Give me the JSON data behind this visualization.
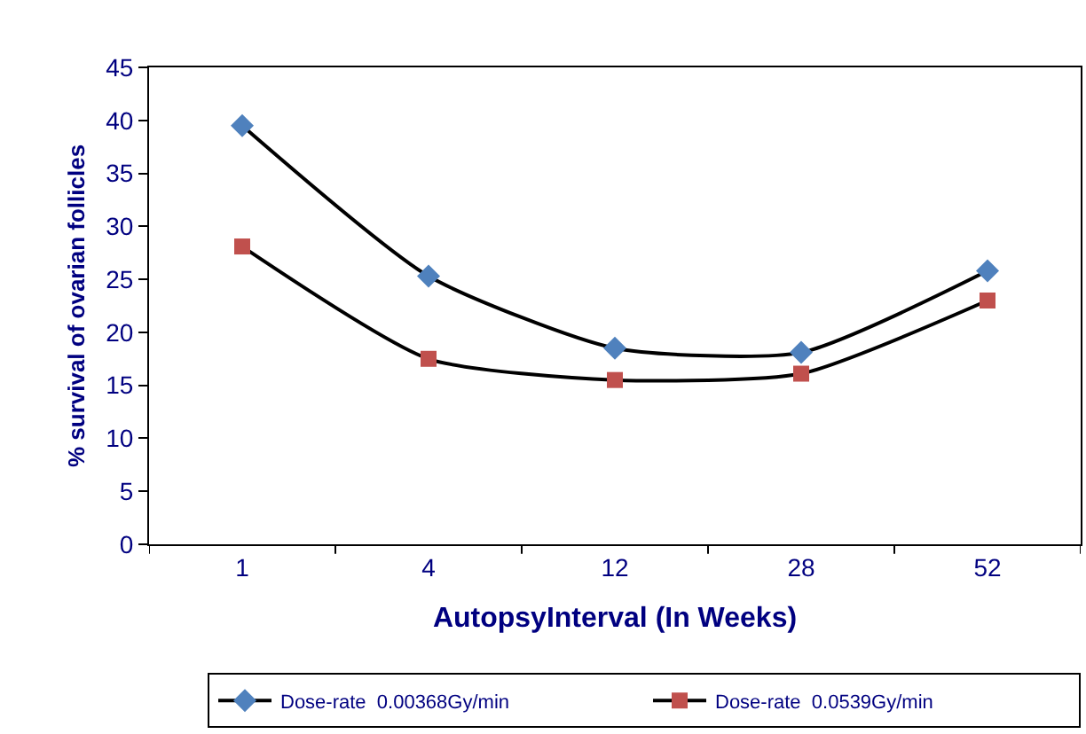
{
  "chart_data": {
    "type": "line",
    "xlabel": "AutopsyInterval (In Weeks)",
    "ylabel": "% survival of ovarian follicles",
    "categories": [
      "1",
      "4",
      "12",
      "28",
      "52"
    ],
    "series": [
      {
        "name": "Dose-rate  0.00368Gy/min",
        "color": "#4f81bd",
        "marker": "diamond",
        "values": [
          39.5,
          25.3,
          18.5,
          18.1,
          25.8
        ]
      },
      {
        "name": "Dose-rate  0.0539Gy/min",
        "color": "#c0504d",
        "marker": "square",
        "values": [
          28.1,
          17.5,
          15.5,
          16.1,
          23.0
        ]
      }
    ],
    "ylim": [
      0,
      45
    ],
    "yticks": [
      0,
      5,
      10,
      15,
      20,
      25,
      30,
      35,
      40,
      45
    ],
    "legend": "bottom"
  }
}
